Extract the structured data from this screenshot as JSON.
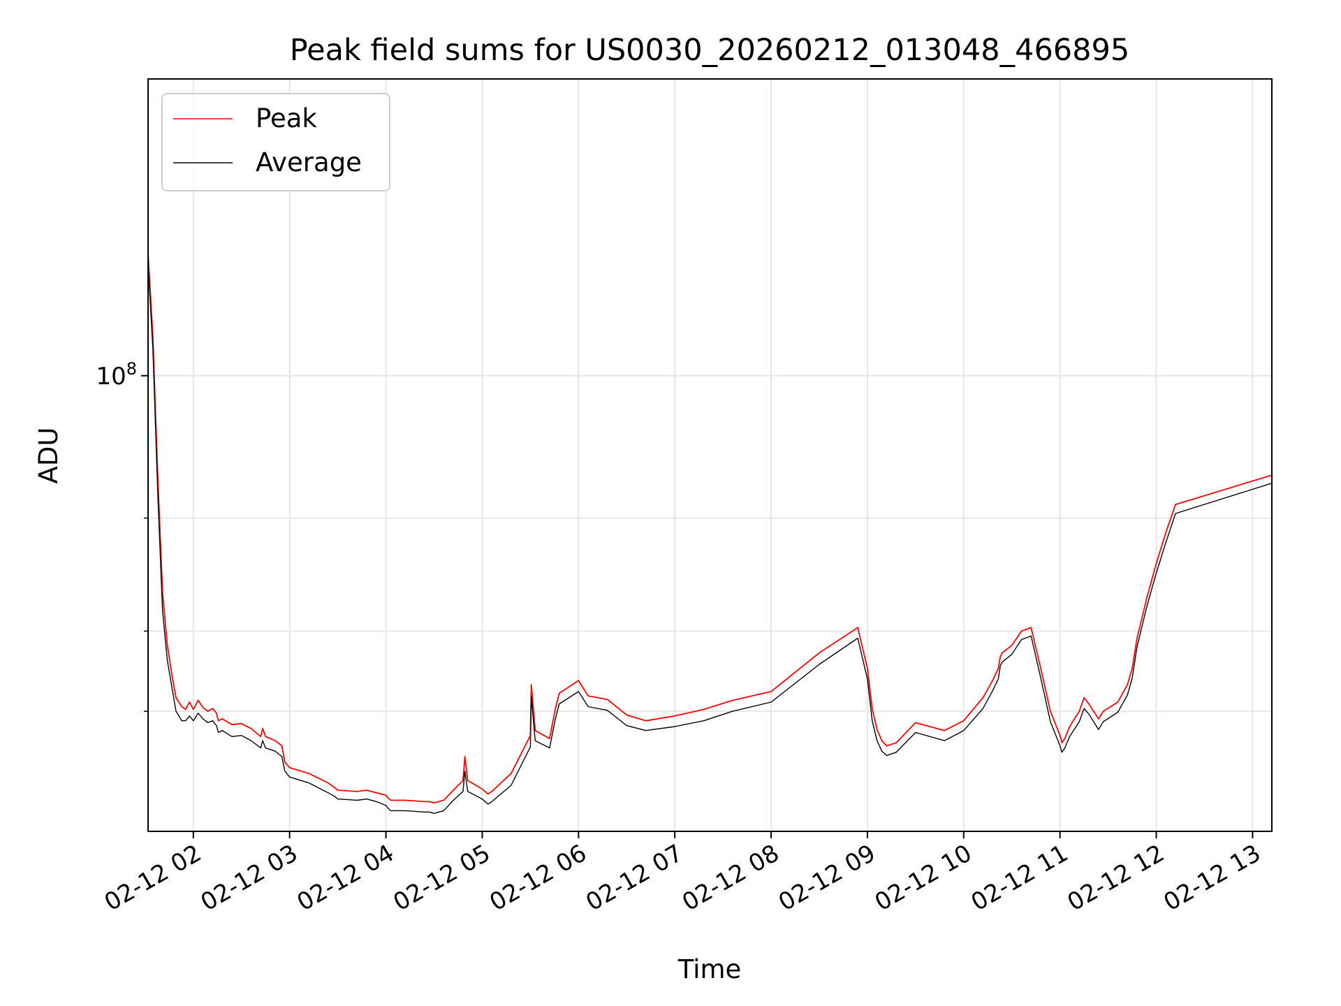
{
  "chart_data": {
    "type": "line",
    "title": "Peak field sums for US0030_20260212_013048_466895",
    "xlabel": "Time",
    "ylabel": "ADU",
    "yscale": "log",
    "grid": true,
    "legend_position": "top-left",
    "x_units": "hours since 2026-02-12 00:00",
    "xlim": [
      1.53,
      13.2
    ],
    "ylim": [
      19500000,
      290000000
    ],
    "y_ticks": [
      {
        "value": 100000000,
        "base": "10",
        "exponent": "8"
      }
    ],
    "y_minor_ticks": [
      30000000,
      40000000,
      60000000
    ],
    "x_ticks": [
      {
        "value": 2,
        "label": "02-12 02"
      },
      {
        "value": 3,
        "label": "02-12 03"
      },
      {
        "value": 4,
        "label": "02-12 04"
      },
      {
        "value": 5,
        "label": "02-12 05"
      },
      {
        "value": 6,
        "label": "02-12 06"
      },
      {
        "value": 7,
        "label": "02-12 07"
      },
      {
        "value": 8,
        "label": "02-12 08"
      },
      {
        "value": 9,
        "label": "02-12 09"
      },
      {
        "value": 10,
        "label": "02-12 10"
      },
      {
        "value": 11,
        "label": "02-12 11"
      },
      {
        "value": 12,
        "label": "02-12 12"
      },
      {
        "value": 13,
        "label": "02-12 13"
      }
    ],
    "series": [
      {
        "name": "Peak",
        "color": "#ff0000",
        "x": [
          1.53,
          1.58,
          1.63,
          1.68,
          1.73,
          1.78,
          1.82,
          1.85,
          1.88,
          1.92,
          1.96,
          2.0,
          2.05,
          2.1,
          2.15,
          2.2,
          2.24,
          2.26,
          2.3,
          2.4,
          2.5,
          2.6,
          2.7,
          2.72,
          2.75,
          2.85,
          2.92,
          2.95,
          3.0,
          3.2,
          3.4,
          3.47,
          3.5,
          3.7,
          3.8,
          3.9,
          4.0,
          4.02,
          4.05,
          4.2,
          4.4,
          4.45,
          4.5,
          4.6,
          4.7,
          4.8,
          4.82,
          4.85,
          5.0,
          5.06,
          5.1,
          5.3,
          5.5,
          5.51,
          5.55,
          5.7,
          5.76,
          5.8,
          6.0,
          6.1,
          6.3,
          6.5,
          6.7,
          7.0,
          7.3,
          7.6,
          8.0,
          8.5,
          8.9,
          9.0,
          9.05,
          9.1,
          9.15,
          9.2,
          9.3,
          9.5,
          9.8,
          10.0,
          10.2,
          10.3,
          10.36,
          10.38,
          10.4,
          10.5,
          10.6,
          10.7,
          10.8,
          10.9,
          11.0,
          11.02,
          11.05,
          11.1,
          11.2,
          11.25,
          11.3,
          11.4,
          11.45,
          11.6,
          11.7,
          11.75,
          11.8,
          11.9,
          12.0,
          12.1,
          12.2,
          13.2
        ],
        "y": [
          155000000,
          115000000,
          70000000,
          46000000,
          38000000,
          34000000,
          31500000,
          31000000,
          30500000,
          30200000,
          31000000,
          30200000,
          31200000,
          30400000,
          30000000,
          30300000,
          29800000,
          29000000,
          29200000,
          28600000,
          28700000,
          28200000,
          27400000,
          28200000,
          27400000,
          27000000,
          26500000,
          25000000,
          24500000,
          24000000,
          23200000,
          22800000,
          22600000,
          22500000,
          22600000,
          22400000,
          22200000,
          22000000,
          21800000,
          21800000,
          21700000,
          21700000,
          21600000,
          21800000,
          22600000,
          23400000,
          25500000,
          23400000,
          22700000,
          22300000,
          22500000,
          24000000,
          27500000,
          33000000,
          28000000,
          27200000,
          30300000,
          32000000,
          33500000,
          31700000,
          31300000,
          29600000,
          29000000,
          29500000,
          30200000,
          31200000,
          32200000,
          37000000,
          40500000,
          35000000,
          30300000,
          28100000,
          27000000,
          26500000,
          26800000,
          28800000,
          28000000,
          29000000,
          31500000,
          33500000,
          35000000,
          36500000,
          37000000,
          38000000,
          40000000,
          40500000,
          35000000,
          30000000,
          27500000,
          26800000,
          27200000,
          28400000,
          30000000,
          31500000,
          30800000,
          29200000,
          30000000,
          31000000,
          33000000,
          35000000,
          39000000,
          45000000,
          51000000,
          57000000,
          63000000,
          70000000
        ]
      },
      {
        "name": "Average",
        "color": "#000000",
        "x": [
          1.53,
          1.58,
          1.63,
          1.68,
          1.73,
          1.78,
          1.82,
          1.85,
          1.88,
          1.92,
          1.96,
          2.0,
          2.05,
          2.1,
          2.15,
          2.2,
          2.24,
          2.26,
          2.3,
          2.4,
          2.5,
          2.6,
          2.7,
          2.72,
          2.75,
          2.85,
          2.92,
          2.95,
          3.0,
          3.2,
          3.4,
          3.47,
          3.5,
          3.7,
          3.8,
          3.9,
          4.0,
          4.02,
          4.05,
          4.2,
          4.4,
          4.45,
          4.5,
          4.6,
          4.7,
          4.8,
          4.82,
          4.85,
          5.0,
          5.06,
          5.1,
          5.3,
          5.5,
          5.51,
          5.55,
          5.7,
          5.76,
          5.8,
          6.0,
          6.1,
          6.3,
          6.5,
          6.7,
          7.0,
          7.3,
          7.6,
          8.0,
          8.5,
          8.9,
          9.0,
          9.05,
          9.1,
          9.15,
          9.2,
          9.3,
          9.5,
          9.8,
          10.0,
          10.2,
          10.3,
          10.36,
          10.38,
          10.4,
          10.5,
          10.6,
          10.7,
          10.8,
          10.9,
          11.0,
          11.02,
          11.05,
          11.1,
          11.2,
          11.25,
          11.3,
          11.4,
          11.45,
          11.6,
          11.7,
          11.75,
          11.8,
          11.9,
          12.0,
          12.1,
          12.2,
          13.2
        ],
        "y": [
          150000000,
          110000000,
          66000000,
          43000000,
          36000000,
          32500000,
          30000000,
          29500000,
          29000000,
          29000000,
          29500000,
          29000000,
          29800000,
          29200000,
          28800000,
          29000000,
          28500000,
          27800000,
          28000000,
          27400000,
          27500000,
          27000000,
          26300000,
          27000000,
          26300000,
          26000000,
          25500000,
          24200000,
          23700000,
          23200000,
          22400000,
          22100000,
          21900000,
          21800000,
          21900000,
          21700000,
          21400000,
          21200000,
          21000000,
          21000000,
          20900000,
          20900000,
          20800000,
          21000000,
          21800000,
          22500000,
          24200000,
          22500000,
          21900000,
          21500000,
          21700000,
          23000000,
          26400000,
          31600000,
          27000000,
          26300000,
          29200000,
          30800000,
          32200000,
          30500000,
          30100000,
          28500000,
          28000000,
          28400000,
          29000000,
          30000000,
          31000000,
          35500000,
          39000000,
          33700000,
          29000000,
          27000000,
          26000000,
          25600000,
          25900000,
          27800000,
          27000000,
          28000000,
          30300000,
          32300000,
          33700000,
          35300000,
          35800000,
          36800000,
          38800000,
          39300000,
          33800000,
          28900000,
          26500000,
          25900000,
          26300000,
          27400000,
          28900000,
          30300000,
          29700000,
          28100000,
          28900000,
          29900000,
          31800000,
          33800000,
          37800000,
          43600000,
          49300000,
          55000000,
          61000000,
          68000000
        ]
      }
    ],
    "legend": [
      {
        "label": "Peak",
        "color": "#ff0000"
      },
      {
        "label": "Average",
        "color": "#000000"
      }
    ]
  }
}
